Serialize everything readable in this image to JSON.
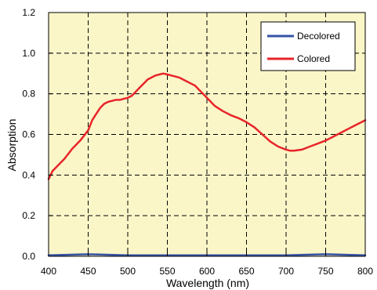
{
  "chart_data": {
    "type": "line",
    "title": "",
    "xlabel": "Wavelength (nm)",
    "ylabel": "Absorption",
    "xlim": [
      400,
      800
    ],
    "ylim": [
      0,
      1.2
    ],
    "xticks": [
      400,
      450,
      500,
      550,
      600,
      650,
      700,
      750,
      800
    ],
    "yticks": [
      0.0,
      0.2,
      0.4,
      0.6,
      0.8,
      1.0,
      1.2
    ],
    "xtick_labels": [
      "400",
      "450",
      "500",
      "550",
      "600",
      "650",
      "700",
      "750",
      "800"
    ],
    "ytick_labels": [
      "0.0",
      "0.2",
      "0.4",
      "0.6",
      "0.8",
      "1.0",
      "1.2"
    ],
    "grid": true,
    "legend_position": "top-right",
    "colors": {
      "plot_background": "#FAF6C8",
      "grid": "#000000",
      "decolored": "#3553A6",
      "colored": "#E8242A"
    },
    "series": [
      {
        "name": "Decolored",
        "color": "#3553A6",
        "x": [
          400,
          450,
          500,
          550,
          600,
          650,
          700,
          750,
          800
        ],
        "y": [
          0.005,
          0.01,
          0.005,
          0.005,
          0.005,
          0.005,
          0.005,
          0.01,
          0.005
        ]
      },
      {
        "name": "Colored",
        "color": "#E8242A",
        "x": [
          400,
          405,
          410,
          420,
          430,
          440,
          450,
          455,
          460,
          465,
          470,
          475,
          480,
          485,
          490,
          495,
          500,
          505,
          510,
          515,
          520,
          525,
          530,
          535,
          540,
          545,
          550,
          555,
          560,
          565,
          570,
          575,
          580,
          585,
          590,
          600,
          610,
          620,
          630,
          640,
          650,
          660,
          670,
          680,
          690,
          700,
          705,
          710,
          720,
          730,
          740,
          750,
          760,
          770,
          780,
          790,
          800
        ],
        "y": [
          0.38,
          0.42,
          0.44,
          0.48,
          0.53,
          0.57,
          0.62,
          0.67,
          0.7,
          0.73,
          0.75,
          0.76,
          0.765,
          0.77,
          0.77,
          0.775,
          0.78,
          0.79,
          0.81,
          0.83,
          0.85,
          0.87,
          0.88,
          0.89,
          0.895,
          0.9,
          0.895,
          0.89,
          0.885,
          0.88,
          0.87,
          0.86,
          0.85,
          0.84,
          0.82,
          0.78,
          0.74,
          0.715,
          0.695,
          0.68,
          0.66,
          0.635,
          0.6,
          0.565,
          0.54,
          0.525,
          0.52,
          0.52,
          0.525,
          0.54,
          0.555,
          0.57,
          0.59,
          0.61,
          0.63,
          0.65,
          0.67
        ]
      }
    ]
  }
}
